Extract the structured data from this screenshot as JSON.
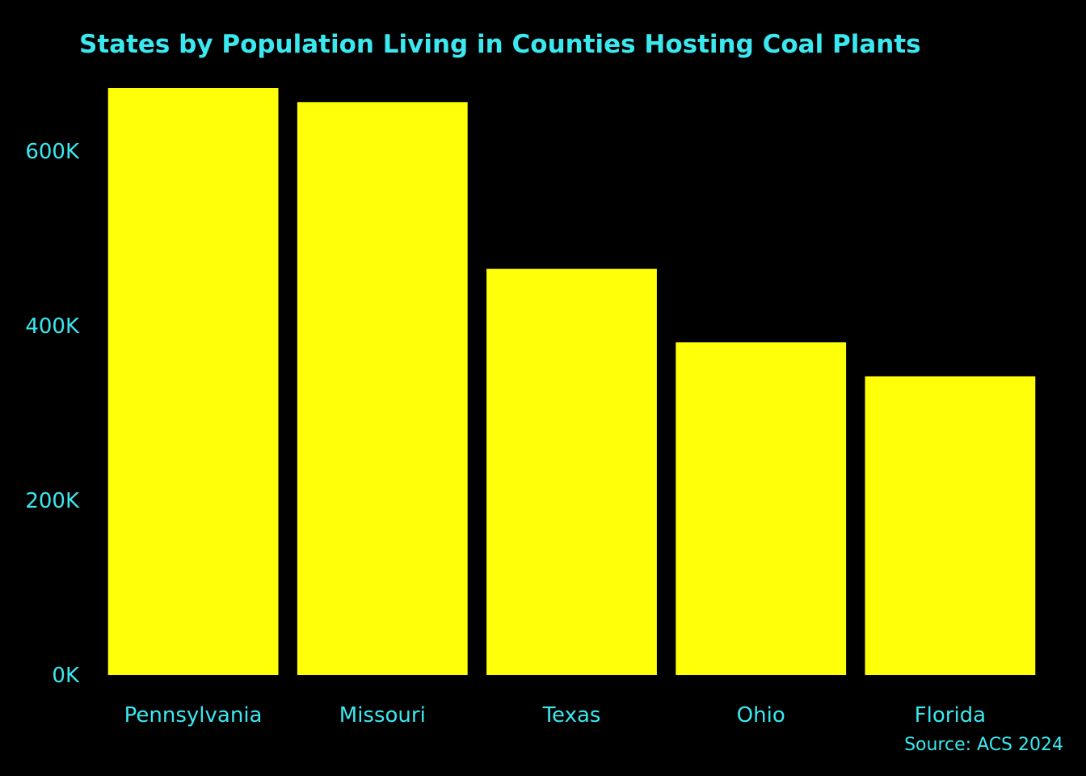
{
  "colors": {
    "background": "#000000",
    "bar": "#FFFF0A",
    "text": "#3BE8F0"
  },
  "chart_data": {
    "type": "bar",
    "title": "States by Population Living in Counties Hosting Coal Plants",
    "xlabel": "",
    "ylabel": "",
    "categories": [
      "Pennsylvania",
      "Missouri",
      "Texas",
      "Ohio",
      "Florida"
    ],
    "values": [
      672000,
      656000,
      465000,
      381000,
      342000
    ],
    "ylim": [
      0,
      672000
    ],
    "yticks": [
      0,
      200000,
      400000,
      600000
    ],
    "ytick_labels": [
      "0K",
      "200K",
      "400K",
      "600K"
    ],
    "grid": false,
    "legend": "none",
    "source": "Source: ACS 2024"
  }
}
